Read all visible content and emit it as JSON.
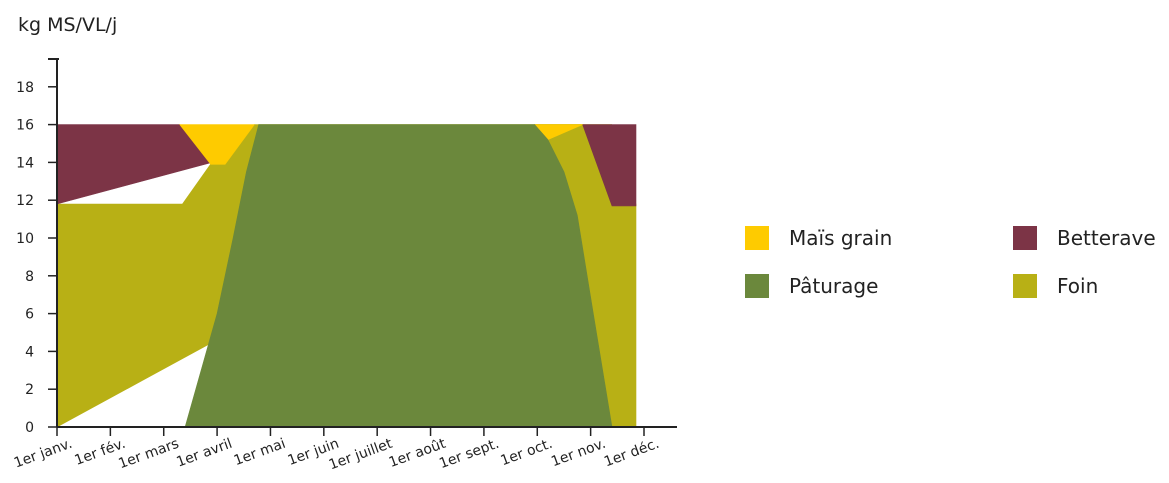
{
  "chart_data": {
    "type": "area",
    "ylabel": "kg MS/VL/j",
    "ylim": [
      0,
      20
    ],
    "yticks": [
      0,
      2,
      4,
      6,
      8,
      10,
      12,
      14,
      16,
      18
    ],
    "categories": [
      "1er janv.",
      "1er fév.",
      "1er mars",
      "1er avril",
      "1er mai",
      "1er juin",
      "1er juillet",
      "1er août",
      "1er sept.",
      "1er oct.",
      "1er nov.",
      "1er déc."
    ],
    "x_unit": "months since 1er janv.",
    "series": [
      {
        "name": "Pâturage",
        "color": "#6b883c",
        "points": [
          [
            2.4,
            0
          ],
          [
            2.7,
            3
          ],
          [
            3.0,
            6
          ],
          [
            3.3,
            10
          ],
          [
            3.55,
            13.5
          ],
          [
            3.78,
            16
          ],
          [
            8.95,
            16
          ],
          [
            9.2,
            15.2
          ],
          [
            9.5,
            13.5
          ],
          [
            9.75,
            11.2
          ],
          [
            10.05,
            6
          ],
          [
            10.4,
            0
          ]
        ]
      },
      {
        "name": "Foin",
        "color": "#b8b015",
        "points": [
          [
            0,
            0
          ],
          [
            0,
            11.8
          ],
          [
            2.35,
            11.8
          ],
          [
            2.9,
            14.0
          ],
          [
            3.7,
            16
          ],
          [
            10.4,
            16
          ],
          [
            10.4,
            0
          ],
          [
            10.85,
            0
          ],
          [
            10.85,
            11.8
          ],
          [
            10.4,
            11.8
          ]
        ]
      },
      {
        "name": "Betterave",
        "color": "#7c3446",
        "points": [
          [
            0,
            11.8
          ],
          [
            0,
            16
          ],
          [
            2.3,
            16
          ],
          [
            2.9,
            14.0
          ],
          [
            2.35,
            11.8
          ],
          [
            9.85,
            16
          ],
          [
            10.85,
            16
          ],
          [
            10.85,
            11.7
          ],
          [
            10.4,
            11.7
          ]
        ]
      },
      {
        "name": "Maïs grain",
        "color": "#fecb00",
        "points": [
          [
            2.3,
            16
          ],
          [
            3.7,
            16
          ],
          [
            3.15,
            13.9
          ],
          [
            2.88,
            13.9
          ],
          [
            8.95,
            16
          ],
          [
            9.85,
            16
          ]
        ]
      }
    ],
    "legend_position": "right",
    "grid": false
  },
  "legend": [
    {
      "label": "Maïs grain",
      "color": "#fecb00"
    },
    {
      "label": "Betterave",
      "color": "#7c3446"
    },
    {
      "label": "Pâturage",
      "color": "#6b883c"
    },
    {
      "label": "Foin",
      "color": "#b8b015"
    }
  ]
}
